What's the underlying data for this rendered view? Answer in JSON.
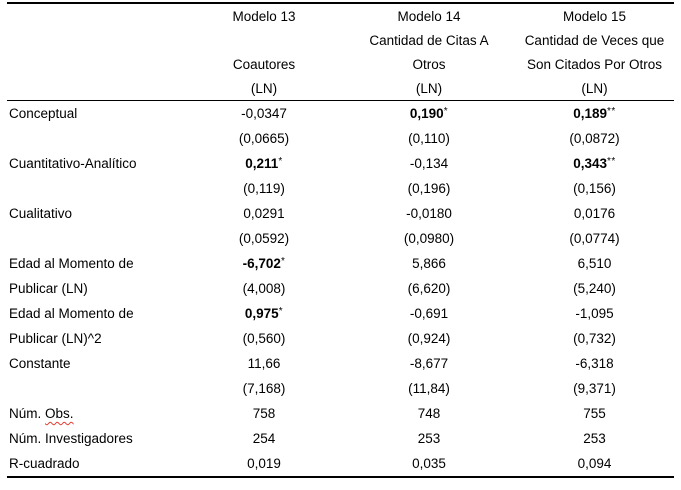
{
  "document": {
    "background_color": "#ffffff",
    "text_color": "#000000",
    "rule_color": "#000000",
    "spellcheck_underline_color": "#e03c31"
  },
  "header": {
    "row_label_blank": "",
    "models": [
      {
        "title": "Modelo 13",
        "line2": "",
        "line3": "Coautores",
        "line4": "(LN)"
      },
      {
        "title": "Modelo 14",
        "line2": "Cantidad de Citas A",
        "line3": "Otros",
        "line4": "(LN)"
      },
      {
        "title": "Modelo 15",
        "line2": "Cantidad de Veces que",
        "line3": "Son Citados Por Otros",
        "line4": "(LN)"
      }
    ]
  },
  "rows": [
    {
      "label": [
        {
          "t": "Conceptual"
        }
      ],
      "cells": [
        {
          "v": "-0,0347"
        },
        {
          "v": "0,190",
          "bold": true,
          "stars": "*"
        },
        {
          "v": "0,189",
          "bold": true,
          "stars": "**"
        }
      ]
    },
    {
      "label": [],
      "cells": [
        {
          "v": "(0,0665)"
        },
        {
          "v": "(0,110)"
        },
        {
          "v": "(0,0872)"
        }
      ]
    },
    {
      "label": [
        {
          "t": "Cuantitativo-Analítico"
        }
      ],
      "cells": [
        {
          "v": "0,211",
          "bold": true,
          "stars": "*"
        },
        {
          "v": "-0,134"
        },
        {
          "v": "0,343",
          "bold": true,
          "stars": "**"
        }
      ]
    },
    {
      "label": [],
      "cells": [
        {
          "v": "(0,119)"
        },
        {
          "v": "(0,196)"
        },
        {
          "v": "(0,156)"
        }
      ]
    },
    {
      "label": [
        {
          "t": "Cualitativo"
        }
      ],
      "cells": [
        {
          "v": "0,0291"
        },
        {
          "v": "-0,0180"
        },
        {
          "v": "0,0176"
        }
      ]
    },
    {
      "label": [],
      "cells": [
        {
          "v": "(0,0592)"
        },
        {
          "v": "(0,0980)"
        },
        {
          "v": "(0,0774)"
        }
      ]
    },
    {
      "label": [
        {
          "t": "Edad al Momento de"
        }
      ],
      "cells": [
        {
          "v": "-6,702",
          "bold": true,
          "stars": "*"
        },
        {
          "v": "5,866"
        },
        {
          "v": "6,510"
        }
      ]
    },
    {
      "label": [
        {
          "t": "Publicar (LN)"
        }
      ],
      "cells": [
        {
          "v": "(4,008)"
        },
        {
          "v": "(6,620)"
        },
        {
          "v": "(5,240)"
        }
      ]
    },
    {
      "label": [
        {
          "t": "Edad al Momento de"
        }
      ],
      "cells": [
        {
          "v": "0,975",
          "bold": true,
          "stars": "*"
        },
        {
          "v": "-0,691"
        },
        {
          "v": "-1,095"
        }
      ]
    },
    {
      "label": [
        {
          "t": "Publicar (LN)^2"
        }
      ],
      "cells": [
        {
          "v": "(0,560)"
        },
        {
          "v": "(0,924)"
        },
        {
          "v": "(0,732)"
        }
      ]
    },
    {
      "label": [
        {
          "t": "Constante"
        }
      ],
      "cells": [
        {
          "v": "11,66"
        },
        {
          "v": "-8,677"
        },
        {
          "v": "-6,318"
        }
      ]
    },
    {
      "label": [],
      "cells": [
        {
          "v": "(7,168)"
        },
        {
          "v": "(11,84)"
        },
        {
          "v": "(9,371)"
        }
      ]
    },
    {
      "label": [
        {
          "t": "Núm. "
        },
        {
          "t": "Obs.",
          "wavy": true
        }
      ],
      "cells": [
        {
          "v": "758"
        },
        {
          "v": "748"
        },
        {
          "v": "755"
        }
      ]
    },
    {
      "label": [
        {
          "t": "Núm. Investigadores"
        }
      ],
      "cells": [
        {
          "v": "254"
        },
        {
          "v": "253"
        },
        {
          "v": "253"
        }
      ]
    },
    {
      "label": [
        {
          "t": "R-cuadrado"
        }
      ],
      "cells": [
        {
          "v": "0,019"
        },
        {
          "v": "0,035"
        },
        {
          "v": "0,094"
        }
      ]
    }
  ]
}
